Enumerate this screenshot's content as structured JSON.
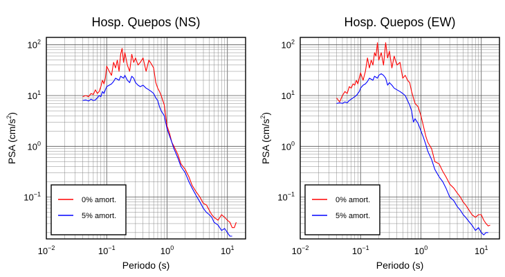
{
  "chart_data": [
    {
      "type": "line",
      "title": "Hosp. Quepos (NS)",
      "xlabel": "Periodo (s)",
      "ylabel_base": "PSA (cm/s",
      "ylabel_sup": "2",
      "ylabel_end": ")",
      "x_scale": "log",
      "y_scale": "log",
      "xlim": [
        0.01,
        20
      ],
      "ylim": [
        0.015,
        140
      ],
      "grid": true,
      "legend_position": "bottom-left",
      "x_ticks": [
        {
          "base": "10",
          "exp": "−2",
          "value": 0.01
        },
        {
          "base": "10",
          "exp": "−1",
          "value": 0.1
        },
        {
          "base": "10",
          "exp": "0",
          "value": 1
        },
        {
          "base": "10",
          "exp": "1",
          "value": 10
        }
      ],
      "y_ticks": [
        {
          "base": "10",
          "exp": "−1",
          "value": 0.1
        },
        {
          "base": "10",
          "exp": "0",
          "value": 1
        },
        {
          "base": "10",
          "exp": "1",
          "value": 10
        },
        {
          "base": "10",
          "exp": "2",
          "value": 100
        }
      ],
      "series": [
        {
          "name": "0% amort.",
          "color": "#ff0000",
          "x": [
            0.04,
            0.045,
            0.05,
            0.055,
            0.06,
            0.065,
            0.07,
            0.075,
            0.08,
            0.085,
            0.09,
            0.095,
            0.1,
            0.11,
            0.12,
            0.13,
            0.14,
            0.15,
            0.16,
            0.17,
            0.18,
            0.19,
            0.2,
            0.22,
            0.24,
            0.26,
            0.28,
            0.3,
            0.33,
            0.36,
            0.4,
            0.45,
            0.5,
            0.55,
            0.6,
            0.65,
            0.7,
            0.75,
            0.8,
            0.9,
            1.0,
            1.1,
            1.2,
            1.3,
            1.5,
            1.7,
            2.0,
            2.3,
            2.6,
            3.0,
            3.5,
            4.0,
            4.5,
            5.0,
            5.5,
            6.0,
            7.0,
            8.0,
            9.0,
            10.0,
            11.0,
            12.0,
            13.0,
            14.0
          ],
          "y": [
            9.5,
            10,
            9.5,
            11,
            10.5,
            13,
            11,
            12,
            15,
            20,
            17,
            22,
            38,
            30,
            25,
            45,
            35,
            50,
            30,
            65,
            85,
            45,
            70,
            40,
            30,
            65,
            45,
            55,
            40,
            45,
            55,
            30,
            50,
            42,
            35,
            18,
            14,
            12,
            10,
            6.5,
            2.5,
            1.8,
            1.2,
            1.0,
            0.7,
            0.45,
            0.35,
            0.25,
            0.17,
            0.13,
            0.1,
            0.075,
            0.07,
            0.055,
            0.045,
            0.04,
            0.035,
            0.045,
            0.04,
            0.035,
            0.032,
            0.025,
            0.025,
            0.032
          ]
        },
        {
          "name": "5% amort.",
          "color": "#0000ff",
          "x": [
            0.04,
            0.045,
            0.05,
            0.055,
            0.06,
            0.065,
            0.07,
            0.075,
            0.08,
            0.085,
            0.09,
            0.095,
            0.1,
            0.11,
            0.12,
            0.13,
            0.14,
            0.15,
            0.16,
            0.17,
            0.18,
            0.19,
            0.2,
            0.22,
            0.24,
            0.26,
            0.28,
            0.3,
            0.33,
            0.36,
            0.4,
            0.45,
            0.5,
            0.55,
            0.6,
            0.65,
            0.7,
            0.75,
            0.8,
            0.9,
            1.0,
            1.1,
            1.2,
            1.3,
            1.5,
            1.7,
            2.0,
            2.3,
            2.6,
            3.0,
            3.5,
            4.0,
            4.5,
            5.0,
            5.5,
            6.0,
            7.0,
            8.0,
            9.0,
            10.0,
            11.0,
            12.0
          ],
          "y": [
            8,
            8.2,
            7.8,
            8.5,
            8,
            8.2,
            9,
            10,
            9.5,
            12,
            11,
            13,
            15,
            16,
            17,
            19,
            22,
            21,
            20,
            24,
            23,
            22,
            25,
            20,
            18,
            24,
            22,
            18,
            16,
            15,
            16,
            14,
            13,
            12,
            11,
            9,
            8,
            6,
            5,
            4,
            2.2,
            1.6,
            1.2,
            0.9,
            0.6,
            0.4,
            0.3,
            0.2,
            0.15,
            0.11,
            0.08,
            0.06,
            0.05,
            0.045,
            0.04,
            0.032,
            0.028,
            0.022,
            0.024,
            0.02,
            0.017,
            0.017
          ]
        }
      ]
    },
    {
      "type": "line",
      "title": "Hosp. Quepos (EW)",
      "xlabel": "Periodo (s)",
      "ylabel_base": "PSA (cm/s",
      "ylabel_sup": "2",
      "ylabel_end": ")",
      "x_scale": "log",
      "y_scale": "log",
      "xlim": [
        0.01,
        20
      ],
      "ylim": [
        0.015,
        140
      ],
      "grid": true,
      "legend_position": "bottom-left",
      "x_ticks": [
        {
          "base": "10",
          "exp": "−2",
          "value": 0.01
        },
        {
          "base": "10",
          "exp": "−1",
          "value": 0.1
        },
        {
          "base": "10",
          "exp": "0",
          "value": 1
        },
        {
          "base": "10",
          "exp": "1",
          "value": 10
        }
      ],
      "y_ticks": [
        {
          "base": "10",
          "exp": "−1",
          "value": 0.1
        },
        {
          "base": "10",
          "exp": "0",
          "value": 1
        },
        {
          "base": "10",
          "exp": "1",
          "value": 10
        },
        {
          "base": "10",
          "exp": "2",
          "value": 100
        }
      ],
      "series": [
        {
          "name": "0% amort.",
          "color": "#ff0000",
          "x": [
            0.04,
            0.045,
            0.05,
            0.055,
            0.06,
            0.065,
            0.07,
            0.075,
            0.08,
            0.085,
            0.09,
            0.095,
            0.1,
            0.11,
            0.12,
            0.13,
            0.14,
            0.15,
            0.16,
            0.17,
            0.18,
            0.19,
            0.2,
            0.22,
            0.24,
            0.26,
            0.28,
            0.3,
            0.33,
            0.36,
            0.4,
            0.45,
            0.5,
            0.55,
            0.6,
            0.65,
            0.7,
            0.75,
            0.8,
            0.9,
            1.0,
            1.1,
            1.2,
            1.3,
            1.5,
            1.7,
            2.0,
            2.3,
            2.6,
            3.0,
            3.5,
            4.0,
            4.5,
            5.0,
            5.5,
            6.0,
            7.0,
            8.0,
            9.0,
            10.0,
            11.0,
            12.0,
            13.0,
            14.0
          ],
          "y": [
            9,
            7.5,
            10,
            12,
            11,
            15,
            14,
            17,
            16,
            20,
            17,
            22,
            28,
            20,
            30,
            55,
            35,
            50,
            40,
            70,
            60,
            110,
            50,
            70,
            40,
            110,
            55,
            75,
            35,
            60,
            40,
            45,
            22,
            25,
            20,
            18,
            12,
            9,
            7,
            6,
            4,
            2.5,
            1.6,
            1.2,
            0.9,
            0.5,
            0.45,
            0.32,
            0.25,
            0.18,
            0.15,
            0.12,
            0.1,
            0.08,
            0.07,
            0.06,
            0.045,
            0.04,
            0.045,
            0.045,
            0.035,
            0.03,
            0.027,
            0.028
          ]
        },
        {
          "name": "5% amort.",
          "color": "#0000ff",
          "x": [
            0.04,
            0.045,
            0.05,
            0.055,
            0.06,
            0.065,
            0.07,
            0.075,
            0.08,
            0.085,
            0.09,
            0.095,
            0.1,
            0.11,
            0.12,
            0.13,
            0.14,
            0.15,
            0.16,
            0.17,
            0.18,
            0.19,
            0.2,
            0.22,
            0.24,
            0.26,
            0.28,
            0.3,
            0.33,
            0.36,
            0.4,
            0.45,
            0.5,
            0.55,
            0.6,
            0.65,
            0.7,
            0.75,
            0.8,
            0.9,
            1.0,
            1.1,
            1.2,
            1.3,
            1.5,
            1.7,
            2.0,
            2.3,
            2.6,
            3.0,
            3.5,
            4.0,
            4.5,
            5.0,
            5.5,
            6.0,
            7.0,
            8.0,
            9.0,
            10.0,
            11.0,
            12.0,
            13.0
          ],
          "y": [
            7,
            7.2,
            7,
            7.5,
            7.2,
            8,
            8.5,
            9,
            9.5,
            10,
            11,
            12,
            14,
            16,
            17,
            19,
            22,
            21,
            20,
            24,
            23,
            22,
            25,
            27,
            25,
            22,
            16,
            18,
            16,
            14,
            13,
            12,
            11,
            10,
            8,
            6.5,
            5,
            3,
            3.5,
            2.8,
            2,
            1.5,
            1.1,
            0.8,
            0.55,
            0.35,
            0.25,
            0.2,
            0.15,
            0.1,
            0.085,
            0.065,
            0.055,
            0.045,
            0.04,
            0.035,
            0.028,
            0.022,
            0.025,
            0.02,
            0.018,
            0.02,
            0.02
          ]
        }
      ]
    }
  ]
}
